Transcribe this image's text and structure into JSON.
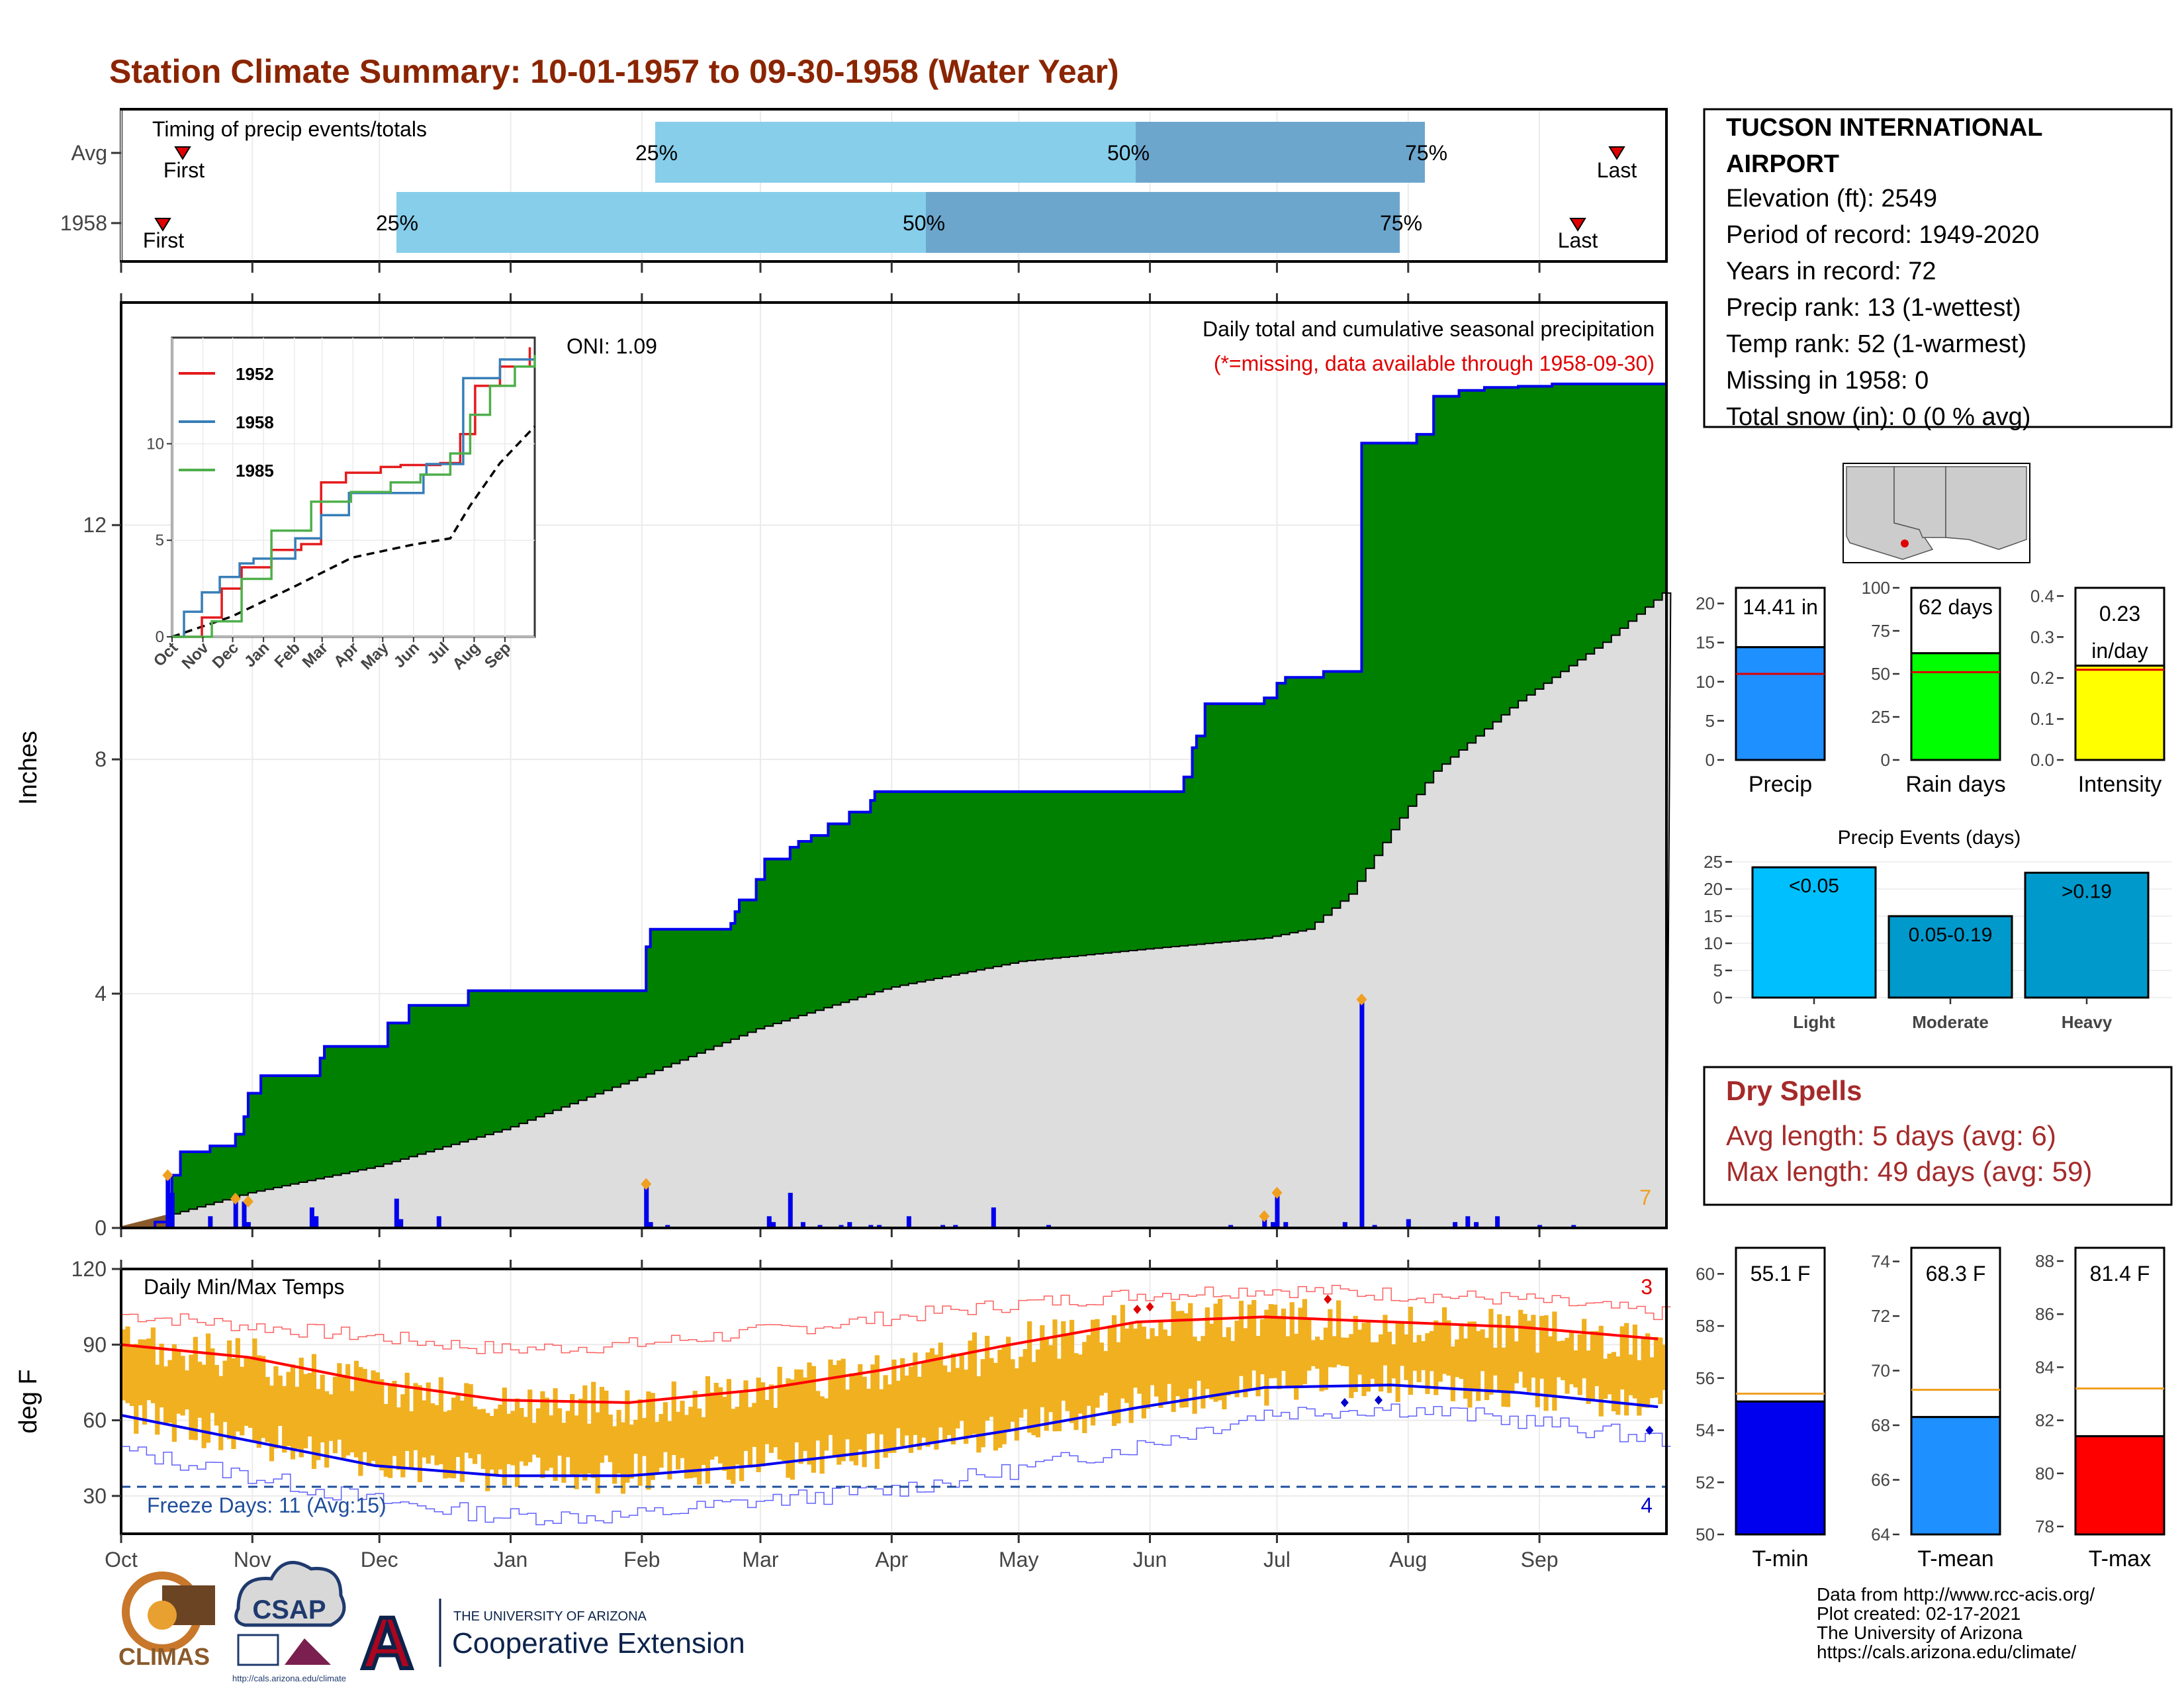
{
  "title": "Station Climate Summary: 10-01-1957 to 09-30-1958 (Water Year)",
  "colors": {
    "title": "#8B2500",
    "green": "#008000",
    "blue": "#0000EE",
    "grey": "#DDDDDD",
    "orange": "#F0B020",
    "red": "#FF0000",
    "lightblue": "#87CEEB",
    "midblue": "#6CA6CD",
    "darkred": "#A52A2A",
    "navy": "#1F4E9C"
  },
  "timing": {
    "label": "Timing of precip events/totals",
    "rows": [
      "Avg",
      "1958"
    ],
    "avg": {
      "first": "First",
      "last": "Last",
      "p25": "25%",
      "p50": "50%",
      "p75": "75%"
    },
    "yr": {
      "first": "First",
      "last": "Last",
      "p25": "25%",
      "p50": "50%",
      "p75": "75%"
    }
  },
  "station": {
    "name": "TUCSON INTERNATIONAL AIRPORT",
    "lines": [
      "Elevation (ft): 2549",
      "Period of record: 1949-2020",
      "Years in record: 72",
      "Precip rank: 13 (1-wettest)",
      "Temp rank: 52 (1-warmest)",
      "Missing in 1958: 0",
      "Total snow (in): 0 (0 % avg)"
    ]
  },
  "precip_panel": {
    "ylabel": "Inches",
    "title": "Daily total and cumulative seasonal precipitation",
    "subtitle": "(*=missing, data available through 1958-09-30)",
    "oni": "ONI: 1.09",
    "count_label": "7"
  },
  "temp_panel": {
    "ylabel": "deg F",
    "title": "Daily Min/Max Temps",
    "freeze": "Freeze Days: 11 (Avg:15)",
    "hot_count": "3",
    "cold_count": "4"
  },
  "months": [
    "Oct",
    "Nov",
    "Dec",
    "Jan",
    "Feb",
    "Mar",
    "Apr",
    "May",
    "Jun",
    "Jul",
    "Aug",
    "Sep"
  ],
  "inset_months": [
    "Oct",
    "Nov",
    "Dec",
    "Jan",
    "Feb",
    "Mar",
    "Apr",
    "May",
    "Jun",
    "Jul",
    "Aug",
    "Sep"
  ],
  "dry_spells": {
    "title": "Dry Spells",
    "avg": "Avg length: 5 days (avg: 6)",
    "max": "Max length: 49 days (avg: 59)"
  },
  "credits": [
    "Data from http://www.rcc-acis.org/",
    "Plot created: 02-17-2021",
    "The University of Arizona",
    "https://cals.arizona.edu/climate/"
  ],
  "logos": {
    "climas": "CLIMAS",
    "csap": "CSAP",
    "csap_url": "http://cals.arizona.edu/climate",
    "ua_small": "THE UNIVERSITY OF ARIZONA",
    "ua_big": "Cooperative Extension",
    "ua_letter": "A"
  },
  "chart_data": [
    {
      "type": "area",
      "name": "Daily total and cumulative seasonal precipitation",
      "ylabel": "Inches",
      "ylim": [
        0,
        15.8
      ],
      "yticks": [
        0,
        4,
        8,
        12
      ],
      "cumulative_1958": [
        [
          0,
          0
        ],
        [
          8,
          0.1
        ],
        [
          12,
          0.9
        ],
        [
          14,
          1.3
        ],
        [
          20,
          1.3
        ],
        [
          21,
          1.4
        ],
        [
          27,
          1.6
        ],
        [
          29,
          1.9
        ],
        [
          30,
          2.3
        ],
        [
          33,
          2.6
        ],
        [
          45,
          2.6
        ],
        [
          47,
          2.9
        ],
        [
          48,
          3.1
        ],
        [
          62,
          3.1
        ],
        [
          63,
          3.5
        ],
        [
          67,
          3.5
        ],
        [
          68,
          3.8
        ],
        [
          80,
          3.8
        ],
        [
          82,
          4.05
        ],
        [
          123,
          4.05
        ],
        [
          124,
          4.8
        ],
        [
          125,
          5.1
        ],
        [
          144,
          5.2
        ],
        [
          145,
          5.4
        ],
        [
          146,
          5.6
        ],
        [
          149,
          5.6
        ],
        [
          150,
          5.95
        ],
        [
          152,
          6.3
        ],
        [
          156,
          6.3
        ],
        [
          158,
          6.5
        ],
        [
          160,
          6.6
        ],
        [
          163,
          6.7
        ],
        [
          167,
          6.9
        ],
        [
          172,
          7.1
        ],
        [
          176,
          7.1
        ],
        [
          177,
          7.3
        ],
        [
          178,
          7.45
        ],
        [
          182,
          7.45
        ],
        [
          228,
          7.45
        ],
        [
          248,
          7.45
        ],
        [
          251,
          7.7
        ],
        [
          253,
          8.2
        ],
        [
          254,
          8.4
        ],
        [
          256,
          8.95
        ],
        [
          268,
          8.95
        ],
        [
          270,
          9.05
        ],
        [
          273,
          9.3
        ],
        [
          275,
          9.4
        ],
        [
          282,
          9.4
        ],
        [
          284,
          9.5
        ],
        [
          292,
          9.5
        ],
        [
          293,
          13.0
        ],
        [
          293,
          13.4
        ],
        [
          302,
          13.4
        ],
        [
          306,
          13.55
        ],
        [
          310,
          14.2
        ],
        [
          316,
          14.3
        ],
        [
          322,
          14.35
        ],
        [
          330,
          14.37
        ],
        [
          338,
          14.41
        ],
        [
          365,
          14.41
        ]
      ],
      "cumulative_avg": [
        [
          0,
          0
        ],
        [
          30,
          0.6
        ],
        [
          60,
          1.05
        ],
        [
          91,
          1.7
        ],
        [
          123,
          2.6
        ],
        [
          150,
          3.4
        ],
        [
          181,
          4.1
        ],
        [
          212,
          4.55
        ],
        [
          240,
          4.75
        ],
        [
          270,
          4.95
        ],
        [
          280,
          5.1
        ],
        [
          290,
          5.7
        ],
        [
          300,
          6.8
        ],
        [
          310,
          7.8
        ],
        [
          330,
          9.0
        ],
        [
          350,
          10.0
        ],
        [
          365,
          10.9
        ]
      ],
      "daily_1958": [
        [
          11,
          0.9
        ],
        [
          12,
          0.6
        ],
        [
          21,
          0.2
        ],
        [
          27,
          0.5
        ],
        [
          29,
          0.45
        ],
        [
          30,
          0.1
        ],
        [
          45,
          0.35
        ],
        [
          46,
          0.2
        ],
        [
          65,
          0.5
        ],
        [
          66,
          0.15
        ],
        [
          75,
          0.2
        ],
        [
          124,
          0.75
        ],
        [
          125,
          0.1
        ],
        [
          129,
          0.05
        ],
        [
          153,
          0.2
        ],
        [
          154,
          0.1
        ],
        [
          158,
          0.6
        ],
        [
          161,
          0.1
        ],
        [
          165,
          0.05
        ],
        [
          170,
          0.05
        ],
        [
          172,
          0.1
        ],
        [
          177,
          0.05
        ],
        [
          179,
          0.05
        ],
        [
          186,
          0.2
        ],
        [
          194,
          0.05
        ],
        [
          197,
          0.05
        ],
        [
          206,
          0.35
        ],
        [
          219,
          0.05
        ],
        [
          262,
          0.05
        ],
        [
          270,
          0.2
        ],
        [
          272,
          0.1
        ],
        [
          273,
          0.6
        ],
        [
          275,
          0.1
        ],
        [
          289,
          0.1
        ],
        [
          293,
          3.9
        ],
        [
          296,
          0.05
        ],
        [
          304,
          0.15
        ],
        [
          315,
          0.1
        ],
        [
          318,
          0.2
        ],
        [
          320,
          0.1
        ],
        [
          325,
          0.2
        ],
        [
          335,
          0.05
        ],
        [
          343,
          0.05
        ]
      ],
      "markers": [
        [
          11,
          0.9
        ],
        [
          27,
          0.5
        ],
        [
          30,
          0.45
        ],
        [
          124,
          0.75
        ],
        [
          270,
          0.2
        ],
        [
          273,
          0.6
        ],
        [
          293,
          3.9
        ]
      ]
    },
    {
      "type": "line",
      "name": "1952",
      "series": [
        {
          "name": "1952"
        },
        {
          "name": "1958"
        },
        {
          "name": "1985"
        }
      ],
      "ylim": [
        0,
        15.5
      ],
      "yticks": [
        0,
        5,
        10
      ],
      "values_1952": [
        [
          0,
          0
        ],
        [
          30,
          1.0
        ],
        [
          50,
          2.5
        ],
        [
          70,
          3.6
        ],
        [
          100,
          4.5
        ],
        [
          130,
          4.8
        ],
        [
          150,
          8.0
        ],
        [
          175,
          8.5
        ],
        [
          210,
          8.8
        ],
        [
          230,
          8.9
        ],
        [
          270,
          9.0
        ],
        [
          290,
          10.5
        ],
        [
          305,
          13.0
        ],
        [
          330,
          14.0
        ],
        [
          360,
          15.0
        ]
      ],
      "values_1958": [
        [
          0,
          0
        ],
        [
          12,
          1.3
        ],
        [
          30,
          2.3
        ],
        [
          48,
          3.1
        ],
        [
          68,
          3.8
        ],
        [
          82,
          4.05
        ],
        [
          124,
          5.1
        ],
        [
          150,
          6.3
        ],
        [
          178,
          7.45
        ],
        [
          253,
          8.4
        ],
        [
          256,
          8.95
        ],
        [
          293,
          13.4
        ],
        [
          330,
          14.37
        ],
        [
          365,
          14.41
        ]
      ],
      "values_1985": [
        [
          0,
          0
        ],
        [
          40,
          0.8
        ],
        [
          70,
          3.0
        ],
        [
          100,
          5.5
        ],
        [
          140,
          7.0
        ],
        [
          180,
          7.5
        ],
        [
          220,
          8.0
        ],
        [
          250,
          8.4
        ],
        [
          280,
          9.5
        ],
        [
          300,
          11.5
        ],
        [
          320,
          13.0
        ],
        [
          345,
          14.0
        ],
        [
          365,
          14.6
        ]
      ],
      "values_avg": [
        [
          0,
          0
        ],
        [
          60,
          1.05
        ],
        [
          123,
          2.6
        ],
        [
          181,
          4.1
        ],
        [
          240,
          4.75
        ],
        [
          280,
          5.1
        ],
        [
          300,
          6.8
        ],
        [
          330,
          9.0
        ],
        [
          365,
          10.9
        ]
      ]
    },
    {
      "type": "line",
      "name": "Daily Min/Max Temps",
      "ylabel": "deg F",
      "ylim": [
        15,
        120
      ],
      "yticks": [
        30,
        60,
        90,
        120
      ],
      "avg_max": [
        [
          0,
          90
        ],
        [
          30,
          85
        ],
        [
          60,
          75
        ],
        [
          90,
          68
        ],
        [
          120,
          67
        ],
        [
          150,
          72
        ],
        [
          180,
          80
        ],
        [
          210,
          90
        ],
        [
          240,
          99
        ],
        [
          270,
          101
        ],
        [
          300,
          99
        ],
        [
          330,
          97
        ],
        [
          365,
          92
        ]
      ],
      "avg_min": [
        [
          0,
          62
        ],
        [
          30,
          52
        ],
        [
          60,
          42
        ],
        [
          90,
          38
        ],
        [
          120,
          38
        ],
        [
          150,
          42
        ],
        [
          180,
          48
        ],
        [
          210,
          56
        ],
        [
          240,
          65
        ],
        [
          270,
          73
        ],
        [
          300,
          74
        ],
        [
          330,
          71
        ],
        [
          365,
          65
        ]
      ],
      "record_max": [
        [
          0,
          102
        ],
        [
          60,
          93
        ],
        [
          90,
          88
        ],
        [
          120,
          90
        ],
        [
          150,
          95
        ],
        [
          210,
          106
        ],
        [
          240,
          110
        ],
        [
          270,
          112
        ],
        [
          300,
          110
        ],
        [
          330,
          108
        ],
        [
          365,
          102
        ]
      ],
      "record_min": [
        [
          0,
          48
        ],
        [
          30,
          38
        ],
        [
          60,
          28
        ],
        [
          90,
          22
        ],
        [
          120,
          22
        ],
        [
          150,
          28
        ],
        [
          180,
          32
        ],
        [
          210,
          40
        ],
        [
          240,
          50
        ],
        [
          270,
          63
        ],
        [
          300,
          65
        ],
        [
          330,
          60
        ],
        [
          365,
          52
        ]
      ]
    },
    {
      "type": "bar",
      "name": "Precip",
      "categories": [
        "Precip"
      ],
      "values": [
        14.41
      ],
      "avg": [
        11.0
      ],
      "label": "14.41 in",
      "xlabel": "Precip",
      "ylim": [
        0,
        22
      ],
      "yticks": [
        0,
        5,
        10,
        15,
        20
      ]
    },
    {
      "type": "bar",
      "name": "Rain days",
      "categories": [
        "Rain days"
      ],
      "values": [
        62
      ],
      "avg": [
        51
      ],
      "label": "62 days",
      "xlabel": "Rain days",
      "ylim": [
        0,
        100
      ],
      "yticks": [
        0,
        25,
        50,
        75,
        100
      ]
    },
    {
      "type": "bar",
      "name": "Intensity",
      "categories": [
        "Intensity"
      ],
      "values": [
        0.23
      ],
      "avg": [
        0.22
      ],
      "label": "0.23",
      "label2": "in/day",
      "xlabel": "Intensity",
      "ylim": [
        0,
        0.42
      ],
      "yticks": [
        0.0,
        0.1,
        0.2,
        0.3,
        0.4
      ]
    },
    {
      "type": "bar",
      "name": "Precip Events (days)",
      "title": "Precip Events (days)",
      "categories": [
        "Light",
        "Moderate",
        "Heavy"
      ],
      "values": [
        24,
        15,
        23
      ],
      "labels": [
        "<0.05",
        "0.05-0.19",
        ">0.19"
      ],
      "ylim": [
        0,
        25
      ],
      "yticks": [
        0,
        5,
        10,
        15,
        20,
        25
      ]
    },
    {
      "type": "bar",
      "name": "T-min",
      "categories": [
        "T-min"
      ],
      "values": [
        55.1
      ],
      "avg": [
        55.4
      ],
      "label": "55.1 F",
      "xlabel": "T-min",
      "ylim": [
        50,
        61
      ],
      "yticks": [
        50,
        52,
        54,
        56,
        58,
        60
      ]
    },
    {
      "type": "bar",
      "name": "T-mean",
      "categories": [
        "T-mean"
      ],
      "values": [
        68.3
      ],
      "avg": [
        69.3
      ],
      "label": "68.3 F",
      "xlabel": "T-mean",
      "ylim": [
        64,
        74.5
      ],
      "yticks": [
        64,
        66,
        68,
        70,
        72,
        74
      ]
    },
    {
      "type": "bar",
      "name": "T-max",
      "categories": [
        "T-max"
      ],
      "values": [
        81.4
      ],
      "avg": [
        83.2
      ],
      "label": "81.4 F",
      "xlabel": "T-max",
      "ylim": [
        77.7,
        88.5
      ],
      "yticks": [
        78,
        80,
        82,
        84,
        86,
        88
      ]
    }
  ]
}
